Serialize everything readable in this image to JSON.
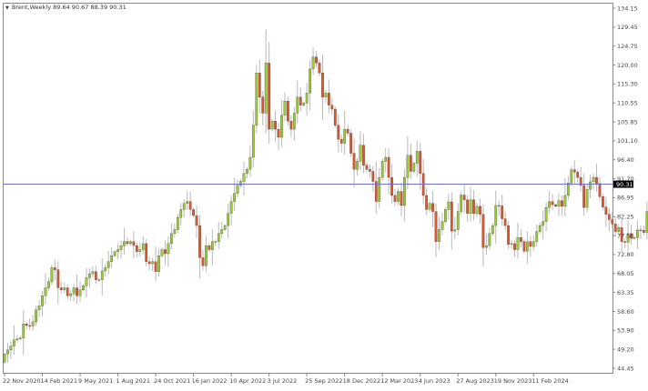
{
  "header": {
    "symbol": "Brent,Weekly",
    "ohlc": "89.64 90.67 88.39 90.31"
  },
  "colors": {
    "bull": "#9acd32",
    "bear": "#e2562b",
    "wick": "#b8b8b8",
    "outline": "#333333",
    "price_line": "#7070d8",
    "price_tag_bg": "#000000"
  },
  "chart_data": {
    "type": "candlestick",
    "timeframe": "Weekly",
    "ylim": [
      44.45,
      134.15
    ],
    "y_ticks": [
      "134.15",
      "129.45",
      "124.75",
      "120.00",
      "115.30",
      "110.55",
      "105.85",
      "101.10",
      "96.40",
      "91.70",
      "86.95",
      "82.25",
      "77.50",
      "72.80",
      "68.05",
      "63.35",
      "58.60",
      "53.90",
      "49.20",
      "44.45"
    ],
    "x_ticks": [
      "22 Nov 2020",
      "14 Feb 2021",
      "9 May 2021",
      "1 Aug 2021",
      "24 Oct 2021",
      "16 Jan 2022",
      "10 Apr 2022",
      "3 Jul 2022",
      "25 Sep 2022",
      "18 Dec 2022",
      "12 Mar 2023",
      "4 Jun 2023",
      "27 Aug 2023",
      "19 Nov 2023",
      "11 Feb 2024"
    ],
    "x_tick_every_bars": 12,
    "current_price": "90.31",
    "first_open": 46.0,
    "close": [
      48,
      49,
      50,
      51.5,
      51.8,
      52,
      55.5,
      55.1,
      55,
      56,
      59,
      60,
      62.5,
      64.5,
      66,
      69.5,
      69,
      64.5,
      64,
      64.5,
      62.5,
      63,
      64.5,
      62.5,
      64,
      65,
      67,
      68,
      68.5,
      66.5,
      66.5,
      68.7,
      69.5,
      71,
      72.5,
      73.5,
      74,
      75,
      76,
      75.5,
      76,
      75,
      73.5,
      74,
      75.5,
      71,
      70.5,
      71,
      68.5,
      72.5,
      74,
      73,
      75.5,
      78,
      79,
      82,
      84,
      85.5,
      86,
      84,
      82.5,
      80,
      72,
      70,
      75,
      74,
      76,
      76,
      78,
      79,
      80,
      83,
      86,
      88,
      90,
      91,
      93,
      94,
      97,
      105,
      118,
      112,
      108,
      120.5,
      104,
      106,
      104,
      102,
      107.5,
      111,
      106,
      104,
      108,
      112,
      110,
      110.5,
      113,
      119,
      122,
      120.5,
      118,
      112,
      113,
      110,
      109,
      105,
      101.5,
      100.5,
      104,
      103,
      98,
      94,
      96,
      100,
      95,
      94,
      93.5,
      91,
      86,
      92,
      96,
      97,
      92,
      87.5,
      86,
      88.5,
      85,
      92,
      97.5,
      93.5,
      95.5,
      98.5,
      93,
      87.5,
      84,
      85.5,
      83.5,
      76,
      79,
      81,
      84,
      85.9,
      78.6,
      79,
      83.5,
      87.6,
      86.4,
      83,
      86.4,
      83,
      84.8,
      82.8,
      74.5,
      75,
      78,
      80,
      85,
      84.9,
      81.7,
      80,
      75.3,
      75.5,
      74,
      77,
      76,
      73.6,
      76,
      74.8,
      76,
      78.5,
      80,
      81,
      84.5,
      86,
      85.2,
      84.8,
      86.2,
      84.8,
      87.5,
      90.6,
      93.9,
      93.3,
      92,
      90,
      84.5,
      89,
      90.9,
      92,
      90.5,
      87.2,
      84.6,
      82.8,
      81.5,
      80.4,
      78.5,
      79.5,
      76,
      75.8,
      78,
      76.8,
      77,
      78.9,
      78.8,
      78.3,
      83.5,
      82,
      83.5,
      81.6,
      83.5,
      82.5,
      82.1,
      85.3,
      86,
      87,
      89.64,
      90.31
    ],
    "last_candle": {
      "open": 89.64,
      "high": 90.67,
      "low": 88.39,
      "close": 90.31
    },
    "grid": false
  }
}
